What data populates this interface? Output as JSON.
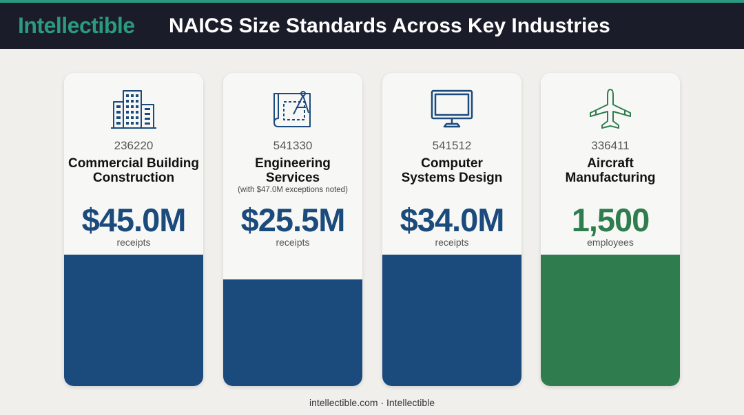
{
  "header": {
    "brand": "Intellectible",
    "title": "NAICS Size Standards Across Key Industries"
  },
  "footer": "intellectible.com · Intellectible",
  "chart_data": {
    "type": "bar",
    "title": "NAICS Size Standards Across Key Industries",
    "categories": [
      "236220",
      "541330",
      "541512",
      "336411"
    ],
    "cards": [
      {
        "code": "236220",
        "name": "Commercial Building Construction",
        "note": "",
        "value_label": "$45.0M",
        "value": 45.0,
        "unit": "receipts",
        "fill_fraction": 0.42,
        "color": "#1b4a7c",
        "icon": "building-icon"
      },
      {
        "code": "541330",
        "name": "Engineering Services",
        "note": "(with $47.0M exceptions noted)",
        "value_label": "$25.5M",
        "value": 25.5,
        "unit": "receipts",
        "fill_fraction": 0.34,
        "color": "#1b4a7c",
        "icon": "blueprint-icon"
      },
      {
        "code": "541512",
        "name": "Computer Systems Design",
        "note": "",
        "value_label": "$34.0M",
        "value": 34.0,
        "unit": "receipts",
        "fill_fraction": 0.42,
        "color": "#1b4a7c",
        "icon": "monitor-icon"
      },
      {
        "code": "336411",
        "name": "Aircraft Manufacturing",
        "note": "",
        "value_label": "1,500",
        "value": 1500,
        "unit": "employees",
        "fill_fraction": 0.42,
        "color": "#2f7d4f",
        "icon": "airplane-icon"
      }
    ]
  }
}
